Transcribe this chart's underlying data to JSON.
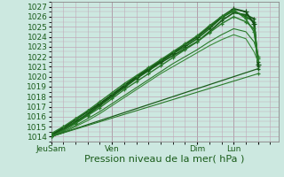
{
  "title": "",
  "xlabel": "Pression niveau de la mer( hPa )",
  "ylim": [
    1013.5,
    1027.5
  ],
  "xlim": [
    0,
    112
  ],
  "yticks": [
    1014,
    1015,
    1016,
    1017,
    1018,
    1019,
    1020,
    1021,
    1022,
    1023,
    1024,
    1025,
    1026,
    1027
  ],
  "xtick_positions": [
    0,
    30,
    72,
    90,
    102
  ],
  "xtick_labels": [
    "JeuSam",
    "Ven",
    "Dim",
    "Lun",
    ""
  ],
  "bg_color": "#cce8e0",
  "grid_color": "#c0a8b8",
  "line_color_dark": "#1a5c1a",
  "line_color_mid": "#2a7a2a",
  "xlabel_fontsize": 8,
  "tick_fontsize": 6.5,
  "lines": [
    {
      "x": [
        0,
        6,
        12,
        18,
        24,
        30,
        36,
        42,
        48,
        54,
        60,
        66,
        72,
        78,
        84,
        90,
        96,
        100,
        102
      ],
      "y": [
        1014.1,
        1014.7,
        1015.4,
        1016.2,
        1017.1,
        1018.0,
        1018.9,
        1019.8,
        1020.6,
        1021.4,
        1022.1,
        1022.8,
        1023.5,
        1024.5,
        1025.6,
        1026.4,
        1026.2,
        1025.8,
        1021.0
      ],
      "lw": 1.2,
      "marker": "+",
      "ms": 3.5,
      "color": "#1a5c1a"
    },
    {
      "x": [
        0,
        6,
        12,
        18,
        24,
        30,
        36,
        42,
        48,
        54,
        60,
        66,
        72,
        78,
        84,
        90,
        96,
        100,
        102
      ],
      "y": [
        1014.1,
        1014.8,
        1015.5,
        1016.3,
        1017.2,
        1018.1,
        1019.0,
        1019.9,
        1020.7,
        1021.5,
        1022.3,
        1023.0,
        1023.8,
        1024.8,
        1025.9,
        1026.6,
        1026.0,
        1025.5,
        1021.5
      ],
      "lw": 1.2,
      "marker": "+",
      "ms": 3.5,
      "color": "#1a6c1a"
    },
    {
      "x": [
        0,
        6,
        12,
        18,
        24,
        30,
        36,
        42,
        48,
        54,
        60,
        66,
        72,
        78,
        84,
        90,
        96,
        100,
        102
      ],
      "y": [
        1014.2,
        1014.9,
        1015.7,
        1016.5,
        1017.3,
        1018.2,
        1019.1,
        1020.0,
        1020.8,
        1021.6,
        1022.4,
        1023.2,
        1024.0,
        1025.0,
        1026.0,
        1026.8,
        1026.5,
        1025.3,
        1021.2
      ],
      "lw": 1.3,
      "marker": "+",
      "ms": 4.0,
      "color": "#155015"
    },
    {
      "x": [
        0,
        6,
        12,
        18,
        24,
        30,
        36,
        42,
        48,
        54,
        60,
        66,
        72,
        78,
        84,
        90,
        96,
        100,
        102
      ],
      "y": [
        1014.3,
        1015.0,
        1015.8,
        1016.6,
        1017.5,
        1018.4,
        1019.3,
        1020.1,
        1020.9,
        1021.7,
        1022.5,
        1023.3,
        1024.1,
        1025.1,
        1026.0,
        1026.7,
        1025.8,
        1024.5,
        1021.8
      ],
      "lw": 1.0,
      "marker": "+",
      "ms": 3.0,
      "color": "#2a7a2a"
    },
    {
      "x": [
        0,
        6,
        12,
        18,
        24,
        30,
        36,
        42,
        48,
        54,
        60,
        66,
        72,
        78,
        84,
        90,
        96,
        100,
        102
      ],
      "y": [
        1014.0,
        1014.6,
        1015.3,
        1016.1,
        1016.9,
        1017.8,
        1018.7,
        1019.5,
        1020.3,
        1021.1,
        1021.9,
        1022.7,
        1023.5,
        1024.4,
        1025.3,
        1026.0,
        1025.5,
        1024.8,
        1022.0
      ],
      "lw": 1.0,
      "marker": "+",
      "ms": 3.0,
      "color": "#2a7a2a"
    },
    {
      "x": [
        0,
        6,
        12,
        18,
        24,
        30,
        36,
        42,
        48,
        54,
        60,
        66,
        72,
        78,
        84,
        90,
        96,
        100,
        102
      ],
      "y": [
        1014.0,
        1014.5,
        1015.1,
        1015.8,
        1016.5,
        1017.3,
        1018.1,
        1018.9,
        1019.7,
        1020.5,
        1021.3,
        1022.0,
        1022.7,
        1023.5,
        1024.2,
        1024.8,
        1024.5,
        1023.5,
        1022.2
      ],
      "lw": 0.8,
      "marker": null,
      "ms": 0,
      "color": "#2a7a2a"
    },
    {
      "x": [
        0,
        6,
        12,
        18,
        24,
        30,
        36,
        42,
        48,
        54,
        60,
        66,
        72,
        78,
        84,
        90,
        96,
        100,
        102
      ],
      "y": [
        1014.0,
        1014.4,
        1015.0,
        1015.6,
        1016.3,
        1017.1,
        1017.9,
        1018.7,
        1019.5,
        1020.3,
        1021.0,
        1021.7,
        1022.4,
        1023.1,
        1023.7,
        1024.2,
        1023.8,
        1022.5,
        1021.5
      ],
      "lw": 0.8,
      "marker": null,
      "ms": 0,
      "color": "#3a8a3a"
    },
    {
      "x": [
        0,
        102
      ],
      "y": [
        1014.0,
        1020.8
      ],
      "lw": 0.9,
      "marker": "+",
      "ms": 3.5,
      "color": "#1a5c1a"
    },
    {
      "x": [
        0,
        102
      ],
      "y": [
        1014.0,
        1020.3
      ],
      "lw": 0.8,
      "marker": "+",
      "ms": 3.0,
      "color": "#2a7a2a"
    }
  ],
  "vlines": [
    0,
    30,
    72,
    90
  ],
  "vline_color": "#999999",
  "minor_x_step": 6,
  "figsize": [
    3.2,
    2.0
  ],
  "dpi": 100
}
